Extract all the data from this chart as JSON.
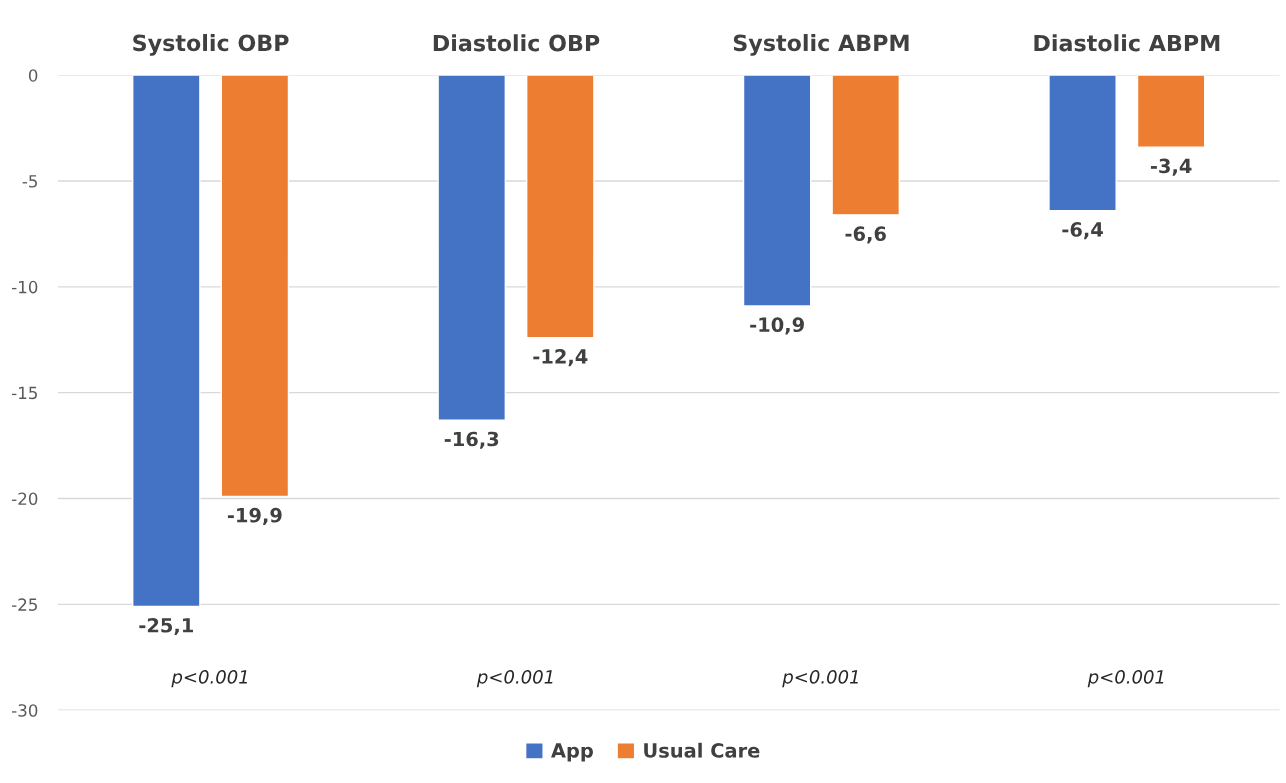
{
  "chart_data": {
    "type": "bar",
    "categories": [
      "Systolic OBP",
      "Diastolic OBP",
      "Systolic ABPM",
      "Diastolic ABPM"
    ],
    "series": [
      {
        "name": "App",
        "color": "#4472c4",
        "values": [
          -25.1,
          -16.3,
          -10.9,
          -6.4
        ],
        "value_labels": [
          "-25,1",
          "-16,3",
          "-10,9",
          "-6,4"
        ]
      },
      {
        "name": "Usual Care",
        "color": "#ed7d31",
        "values": [
          -19.9,
          -12.4,
          -6.6,
          -3.4
        ],
        "value_labels": [
          "-19,9",
          "-12,4",
          "-6,6",
          "-3,4"
        ]
      }
    ],
    "ylim": [
      -30,
      0
    ],
    "yticks": [
      0,
      -5,
      -10,
      -15,
      -20,
      -25,
      -30
    ],
    "grid": "y",
    "legend": "bottom",
    "annotations": [
      "p<0.001",
      "p<0.001",
      "p<0.001",
      "p<0.001"
    ]
  }
}
